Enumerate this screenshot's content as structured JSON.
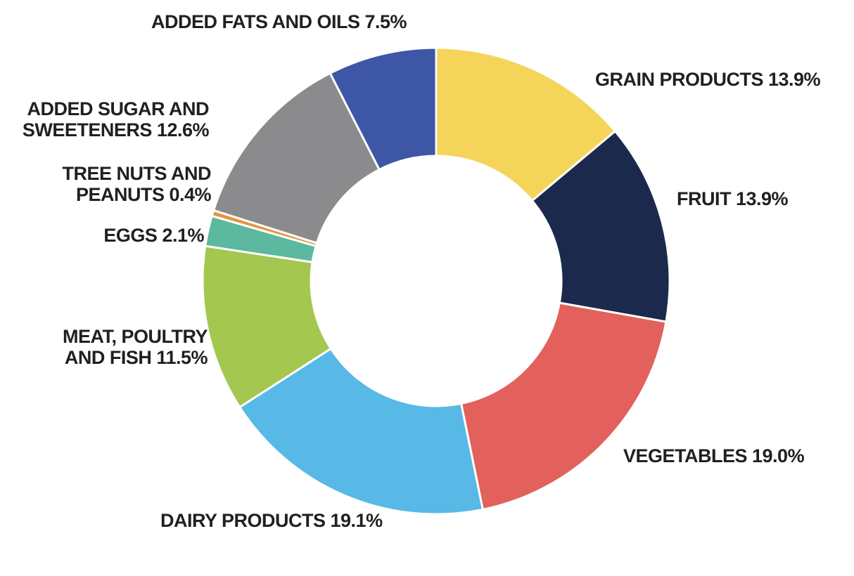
{
  "chart_data": {
    "type": "pie",
    "title": "",
    "donut": true,
    "start_angle_deg": 0,
    "direction": "clockwise",
    "unit": "%",
    "legend_position": "none",
    "categories": [
      "GRAIN PRODUCTS",
      "FRUIT",
      "VEGETABLES",
      "DAIRY PRODUCTS",
      "MEAT, POULTRY AND FISH",
      "EGGS",
      "TREE NUTS AND PEANUTS",
      "ADDED SUGAR AND SWEETENERS",
      "ADDED FATS AND OILS"
    ],
    "values": [
      13.9,
      13.9,
      19.0,
      19.1,
      11.5,
      2.1,
      0.4,
      12.6,
      7.5
    ],
    "colors": [
      "#F5D559",
      "#1B2A4C",
      "#E2615C",
      "#58B8E6",
      "#A3C74F",
      "#5CB89E",
      "#E5953F",
      "#8B8B8D",
      "#3E56A6"
    ],
    "slice_gap_color": "#ffffff",
    "labels": [
      "GRAIN PRODUCTS 13.9%",
      "FRUIT 13.9%",
      "VEGETABLES 19.0%",
      "DAIRY PRODUCTS 19.1%",
      "MEAT, POULTRY\nAND FISH 11.5%",
      "EGGS 2.1%",
      "TREE NUTS AND\nPEANUTS 0.4%",
      "ADDED SUGAR AND\nSWEETENERS 12.6%",
      "ADDED FATS AND OILS 7.5%"
    ]
  }
}
